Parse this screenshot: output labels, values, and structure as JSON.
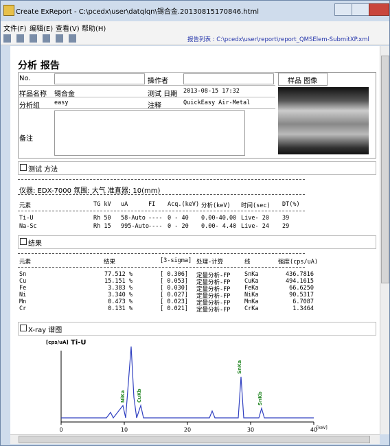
{
  "window": {
    "title": "Create ExReport - C:\\pcedx\\user\\datqlqn\\锡合金.20130815170846.html"
  },
  "menu": [
    "文件(F)",
    "编辑(E)",
    "查看(V)",
    "帮助(H)"
  ],
  "toolbar": {
    "report_list": "报告列表 : C:\\pcedx\\user\\report\\report_QMSElem-SubmitXP.xml"
  },
  "report": {
    "heading": "分析 报告",
    "no_label": "No.",
    "operator_label": "操作者",
    "image_button": "样品 图像",
    "sample_label": "样品名称",
    "sample": "锡合金",
    "date_label": "测试 日期",
    "date": "2013-08-15  17:32",
    "group_label": "分析组",
    "group": "easy",
    "comment_label": "注释",
    "comment": "QuickEasy Air-Metal",
    "remarks_label": "备注"
  },
  "method": {
    "title": "测试 方法",
    "instrument": "仪器: EDX-7000  氛围: 大气  准直器: 10(mm)",
    "header": [
      "元素",
      "TG kV",
      "uA",
      "FI",
      "Acq.(keV)",
      "分析(keV)",
      "时间(sec)",
      "DT(%)"
    ],
    "rows": [
      [
        "Ti-U",
        "Rh 50",
        "58-Auto",
        "----",
        "0 - 40",
        "0.00-40.00",
        "Live-  20",
        "39"
      ],
      [
        "Na-Sc",
        "Rh 15",
        "995-Auto",
        "----",
        "0 - 20",
        "0.00- 4.40",
        "Live-  24",
        "29"
      ]
    ]
  },
  "results": {
    "title": "结果",
    "header": [
      "元素",
      "结果",
      "[3-sigma]",
      "处理-计算",
      "线",
      "强度(cps/uA)"
    ],
    "rows": [
      [
        "Sn",
        "77.512 %",
        "[ 0.306]",
        "定量分析-FP",
        "SnKa",
        "436.7816"
      ],
      [
        "Cu",
        "15.151 %",
        "[ 0.053]",
        "定量分析-FP",
        "CuKa",
        "494.1615"
      ],
      [
        "Fe",
        "3.383 %",
        "[ 0.030]",
        "定量分析-FP",
        "FeKa",
        "66.6250"
      ],
      [
        "Ni",
        "3.340 %",
        "[ 0.027]",
        "定量分析-FP",
        "NiKa",
        "90.5317"
      ],
      [
        "Mn",
        "0.473 %",
        "[ 0.023]",
        "定量分析-FP",
        "MnKa",
        "6.7087"
      ],
      [
        "Cr",
        "0.131 %",
        "[ 0.021]",
        "定量分析-FP",
        "CrKa",
        "1.3464"
      ]
    ]
  },
  "spectrum": {
    "title": "X-ray 谱图",
    "y_unit": "[cps/uA]",
    "channel": "Ti-U",
    "x_unit": "[keV]",
    "xticks": [
      0,
      10,
      20,
      30,
      40
    ],
    "peak_labels": [
      "NiKa",
      "CuKa",
      "CuKb",
      "SnKa",
      "SnKb"
    ]
  }
}
